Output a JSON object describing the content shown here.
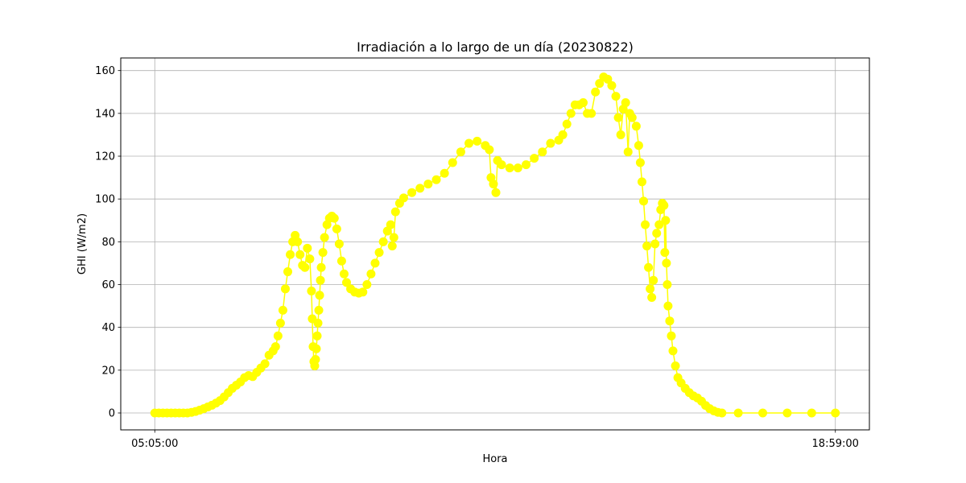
{
  "chart_data": {
    "type": "line",
    "title": "Irradiación a lo largo de un día (20230822)",
    "xlabel": "Hora",
    "ylabel": "GHI (W/m2)",
    "x_range": [
      "05:05:00",
      "18:59:00"
    ],
    "xticks": [
      "05:05:00",
      "18:59:00"
    ],
    "ylim": [
      -7.9,
      165.9
    ],
    "yticks": [
      0,
      20,
      40,
      60,
      80,
      100,
      120,
      140,
      160
    ],
    "grid": true,
    "legend": "none",
    "series": [
      {
        "color": "#ffff00",
        "marker": "circle",
        "points": [
          [
            "05:05:00",
            0
          ],
          [
            "05:10:00",
            0
          ],
          [
            "05:15:00",
            0
          ],
          [
            "05:20:00",
            0
          ],
          [
            "05:25:00",
            0
          ],
          [
            "05:30:00",
            0
          ],
          [
            "05:35:00",
            0
          ],
          [
            "05:40:00",
            0
          ],
          [
            "05:45:00",
            0
          ],
          [
            "05:50:00",
            0.3
          ],
          [
            "05:55:00",
            0.7
          ],
          [
            "06:00:00",
            1.3
          ],
          [
            "06:05:00",
            2
          ],
          [
            "06:10:00",
            2.8
          ],
          [
            "06:15:00",
            3.6
          ],
          [
            "06:20:00",
            4.6
          ],
          [
            "06:25:00",
            5.8
          ],
          [
            "06:30:00",
            7.5
          ],
          [
            "06:35:00",
            9.5
          ],
          [
            "06:40:00",
            11.5
          ],
          [
            "06:45:00",
            13
          ],
          [
            "06:50:00",
            14.5
          ],
          [
            "06:55:00",
            16.5
          ],
          [
            "07:00:00",
            17.5
          ],
          [
            "07:05:00",
            17
          ],
          [
            "07:10:00",
            19
          ],
          [
            "07:15:00",
            21
          ],
          [
            "07:20:00",
            23
          ],
          [
            "07:25:00",
            27
          ],
          [
            "07:30:00",
            29
          ],
          [
            "07:33:00",
            31
          ],
          [
            "07:36:00",
            36
          ],
          [
            "07:39:00",
            42
          ],
          [
            "07:42:00",
            48
          ],
          [
            "07:45:00",
            58
          ],
          [
            "07:48:00",
            66
          ],
          [
            "07:51:00",
            74
          ],
          [
            "07:54:00",
            80
          ],
          [
            "07:57:00",
            83
          ],
          [
            "08:00:00",
            80
          ],
          [
            "08:03:00",
            74
          ],
          [
            "08:06:00",
            69
          ],
          [
            "08:09:00",
            68
          ],
          [
            "08:12:00",
            77
          ],
          [
            "08:15:00",
            72
          ],
          [
            "08:17:00",
            57
          ],
          [
            "08:18:00",
            44
          ],
          [
            "08:19:00",
            31
          ],
          [
            "08:20:00",
            24
          ],
          [
            "08:21:00",
            22
          ],
          [
            "08:22:00",
            25
          ],
          [
            "08:23:00",
            30
          ],
          [
            "08:24:00",
            36
          ],
          [
            "08:25:00",
            42
          ],
          [
            "08:26:00",
            48
          ],
          [
            "08:27:00",
            55
          ],
          [
            "08:28:00",
            62
          ],
          [
            "08:29:00",
            68
          ],
          [
            "08:31:00",
            75
          ],
          [
            "08:33:00",
            82
          ],
          [
            "08:36:00",
            88
          ],
          [
            "08:39:00",
            91
          ],
          [
            "08:42:00",
            92
          ],
          [
            "08:45:00",
            91
          ],
          [
            "08:48:00",
            86
          ],
          [
            "08:51:00",
            79
          ],
          [
            "08:54:00",
            71
          ],
          [
            "08:57:00",
            65
          ],
          [
            "09:00:00",
            61
          ],
          [
            "09:05:00",
            58
          ],
          [
            "09:10:00",
            56.5
          ],
          [
            "09:15:00",
            56
          ],
          [
            "09:20:00",
            56.5
          ],
          [
            "09:25:00",
            60
          ],
          [
            "09:30:00",
            65
          ],
          [
            "09:35:00",
            70
          ],
          [
            "09:40:00",
            75
          ],
          [
            "09:45:00",
            80
          ],
          [
            "09:50:00",
            85
          ],
          [
            "09:54:00",
            88
          ],
          [
            "09:56:00",
            78
          ],
          [
            "09:58:00",
            82
          ],
          [
            "10:00:00",
            94
          ],
          [
            "10:05:00",
            98
          ],
          [
            "10:10:00",
            100.5
          ],
          [
            "10:20:00",
            103
          ],
          [
            "10:30:00",
            105
          ],
          [
            "10:40:00",
            107
          ],
          [
            "10:50:00",
            109
          ],
          [
            "11:00:00",
            112
          ],
          [
            "11:10:00",
            117
          ],
          [
            "11:20:00",
            122
          ],
          [
            "11:30:00",
            126
          ],
          [
            "11:40:00",
            127
          ],
          [
            "11:50:00",
            125
          ],
          [
            "11:55:00",
            123
          ],
          [
            "11:57:00",
            110
          ],
          [
            "12:00:00",
            107
          ],
          [
            "12:03:00",
            103
          ],
          [
            "12:05:00",
            118
          ],
          [
            "12:10:00",
            116
          ],
          [
            "12:20:00",
            114.5
          ],
          [
            "12:30:00",
            114.5
          ],
          [
            "12:40:00",
            116
          ],
          [
            "12:50:00",
            119
          ],
          [
            "13:00:00",
            122
          ],
          [
            "13:10:00",
            126
          ],
          [
            "13:20:00",
            127.5
          ],
          [
            "13:25:00",
            130
          ],
          [
            "13:30:00",
            135
          ],
          [
            "13:35:00",
            140
          ],
          [
            "13:40:00",
            144
          ],
          [
            "13:45:00",
            144
          ],
          [
            "13:50:00",
            145
          ],
          [
            "13:55:00",
            140
          ],
          [
            "14:00:00",
            140
          ],
          [
            "14:05:00",
            150
          ],
          [
            "14:10:00",
            154
          ],
          [
            "14:15:00",
            157
          ],
          [
            "14:20:00",
            156
          ],
          [
            "14:25:00",
            153
          ],
          [
            "14:30:00",
            148
          ],
          [
            "14:33:00",
            138
          ],
          [
            "14:36:00",
            130
          ],
          [
            "14:39:00",
            142
          ],
          [
            "14:42:00",
            145
          ],
          [
            "14:45:00",
            122
          ],
          [
            "14:47:00",
            140
          ],
          [
            "14:50:00",
            138
          ],
          [
            "14:55:00",
            134
          ],
          [
            "14:58:00",
            125
          ],
          [
            "15:00:00",
            117
          ],
          [
            "15:02:00",
            108
          ],
          [
            "15:04:00",
            99
          ],
          [
            "15:06:00",
            88
          ],
          [
            "15:08:00",
            78
          ],
          [
            "15:10:00",
            68
          ],
          [
            "15:12:00",
            58
          ],
          [
            "15:14:00",
            54
          ],
          [
            "15:16:00",
            62
          ],
          [
            "15:18:00",
            79
          ],
          [
            "15:20:00",
            84
          ],
          [
            "15:23:00",
            88
          ],
          [
            "15:25:00",
            95
          ],
          [
            "15:27:00",
            98
          ],
          [
            "15:29:00",
            97
          ],
          [
            "15:30:00",
            75
          ],
          [
            "15:31:00",
            90
          ],
          [
            "15:32:00",
            70
          ],
          [
            "15:33:00",
            60
          ],
          [
            "15:34:00",
            50
          ],
          [
            "15:36:00",
            43
          ],
          [
            "15:38:00",
            36
          ],
          [
            "15:40:00",
            29
          ],
          [
            "15:43:00",
            22
          ],
          [
            "15:46:00",
            16.5
          ],
          [
            "15:50:00",
            14
          ],
          [
            "15:55:00",
            11.5
          ],
          [
            "16:00:00",
            9.5
          ],
          [
            "16:05:00",
            8
          ],
          [
            "16:10:00",
            7
          ],
          [
            "16:15:00",
            5.5
          ],
          [
            "16:20:00",
            3.5
          ],
          [
            "16:25:00",
            2
          ],
          [
            "16:30:00",
            1
          ],
          [
            "16:35:00",
            0.3
          ],
          [
            "16:40:00",
            0
          ],
          [
            "17:00:00",
            0
          ],
          [
            "17:30:00",
            0
          ],
          [
            "18:00:00",
            0
          ],
          [
            "18:30:00",
            0
          ],
          [
            "18:59:00",
            0
          ]
        ]
      }
    ]
  }
}
